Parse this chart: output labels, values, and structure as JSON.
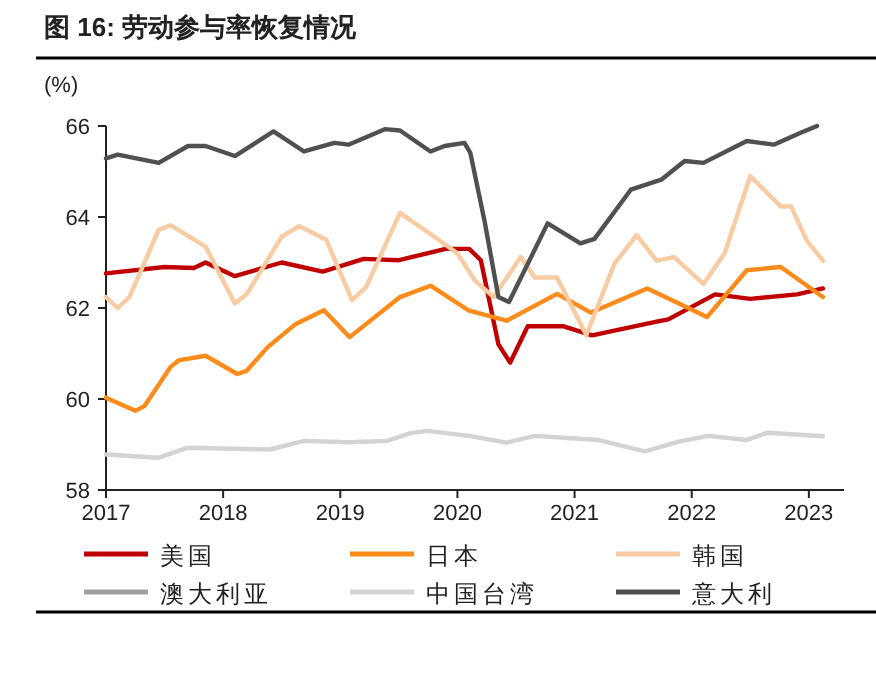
{
  "chart_data": {
    "type": "line",
    "title": "图 16: 劳动参与率恢复情况",
    "ylabel": "(%)",
    "xlim": [
      2017,
      2023.3
    ],
    "xticks": [
      2017,
      2018,
      2019,
      2020,
      2021,
      2022,
      2023
    ],
    "ylim": [
      58,
      66
    ],
    "yticks": [
      58,
      60,
      62,
      64,
      66
    ],
    "grid": false,
    "legend": "bottom",
    "marker": "none",
    "line_style": "solid",
    "series": [
      {
        "name": "美国",
        "color": "#c00000",
        "x": [
          2017.0,
          2017.5,
          2017.75,
          2017.85,
          2018.1,
          2018.5,
          2018.85,
          2019.2,
          2019.5,
          2019.9,
          2020.1,
          2020.2,
          2020.35,
          2020.45,
          2020.6,
          2020.9,
          2021.15,
          2021.7,
          2021.8,
          2022.2,
          2022.5,
          2022.9,
          2023.12
        ],
        "values": [
          62.76,
          62.9,
          62.88,
          63.0,
          62.7,
          63.0,
          62.8,
          63.08,
          63.05,
          63.3,
          63.3,
          63.05,
          61.2,
          60.8,
          61.6,
          61.6,
          61.4,
          61.7,
          61.75,
          62.3,
          62.2,
          62.3,
          62.43
        ]
      },
      {
        "name": "日本",
        "color": "#ff8c1a",
        "x": [
          2017.0,
          2017.25,
          2017.33,
          2017.55,
          2017.62,
          2017.85,
          2018.12,
          2018.2,
          2018.38,
          2018.62,
          2018.86,
          2019.08,
          2019.51,
          2019.77,
          2020.1,
          2020.42,
          2020.85,
          2021.14,
          2021.62,
          2021.9,
          2022.13,
          2022.47,
          2022.76,
          2023.12
        ],
        "values": [
          60.03,
          59.74,
          59.85,
          60.7,
          60.85,
          60.95,
          60.55,
          60.62,
          61.14,
          61.65,
          61.95,
          61.36,
          62.24,
          62.49,
          61.94,
          61.72,
          62.31,
          61.9,
          62.43,
          62.09,
          61.8,
          62.83,
          62.9,
          62.24
        ]
      },
      {
        "name": "韩国",
        "color": "#f9cba3",
        "x": [
          2017.0,
          2017.1,
          2017.2,
          2017.45,
          2017.55,
          2017.85,
          2018.1,
          2018.2,
          2018.5,
          2018.65,
          2018.88,
          2019.1,
          2019.22,
          2019.51,
          2019.8,
          2020.0,
          2020.15,
          2020.31,
          2020.54,
          2020.66,
          2020.85,
          2021.1,
          2021.34,
          2021.53,
          2021.7,
          2021.85,
          2022.1,
          2022.28,
          2022.5,
          2022.76,
          2022.85,
          2022.98,
          2023.12
        ],
        "values": [
          62.24,
          62.0,
          62.24,
          63.72,
          63.82,
          63.35,
          62.1,
          62.3,
          63.57,
          63.8,
          63.5,
          62.17,
          62.46,
          64.09,
          63.57,
          63.2,
          62.6,
          62.24,
          63.12,
          62.67,
          62.67,
          61.4,
          62.97,
          63.6,
          63.04,
          63.12,
          62.53,
          63.2,
          64.9,
          64.23,
          64.23,
          63.49,
          63.04
        ]
      },
      {
        "name": "澳大利亚",
        "color": "#a0a0a0"
      },
      {
        "name": "中国台湾",
        "color": "#d3d3d3",
        "x": [
          2017.0,
          2017.45,
          2017.7,
          2018.4,
          2018.69,
          2019.07,
          2019.4,
          2019.6,
          2019.74,
          2020.1,
          2020.42,
          2020.66,
          2021.2,
          2021.6,
          2021.9,
          2022.14,
          2022.47,
          2022.65,
          2023.12
        ],
        "values": [
          58.78,
          58.71,
          58.93,
          58.89,
          59.08,
          59.05,
          59.08,
          59.25,
          59.3,
          59.19,
          59.04,
          59.19,
          59.1,
          58.85,
          59.07,
          59.19,
          59.1,
          59.26,
          59.18
        ]
      },
      {
        "name": "意大利",
        "color": "#505050",
        "x": [
          2017.0,
          2017.1,
          2017.45,
          2017.7,
          2017.85,
          2018.1,
          2018.43,
          2018.69,
          2018.95,
          2019.07,
          2019.38,
          2019.51,
          2019.77,
          2019.89,
          2020.06,
          2020.11,
          2020.23,
          2020.35,
          2020.44,
          2020.77,
          2021.05,
          2021.17,
          2021.48,
          2021.74,
          2021.94,
          2022.1,
          2022.47,
          2022.7,
          2022.93,
          2023.07
        ],
        "values": [
          65.29,
          65.37,
          65.19,
          65.56,
          65.56,
          65.34,
          65.88,
          65.44,
          65.63,
          65.59,
          65.93,
          65.9,
          65.44,
          65.56,
          65.63,
          65.41,
          63.93,
          62.24,
          62.13,
          63.86,
          63.42,
          63.52,
          64.6,
          64.82,
          65.23,
          65.19,
          65.67,
          65.59,
          65.85,
          66.0
        ]
      }
    ]
  }
}
